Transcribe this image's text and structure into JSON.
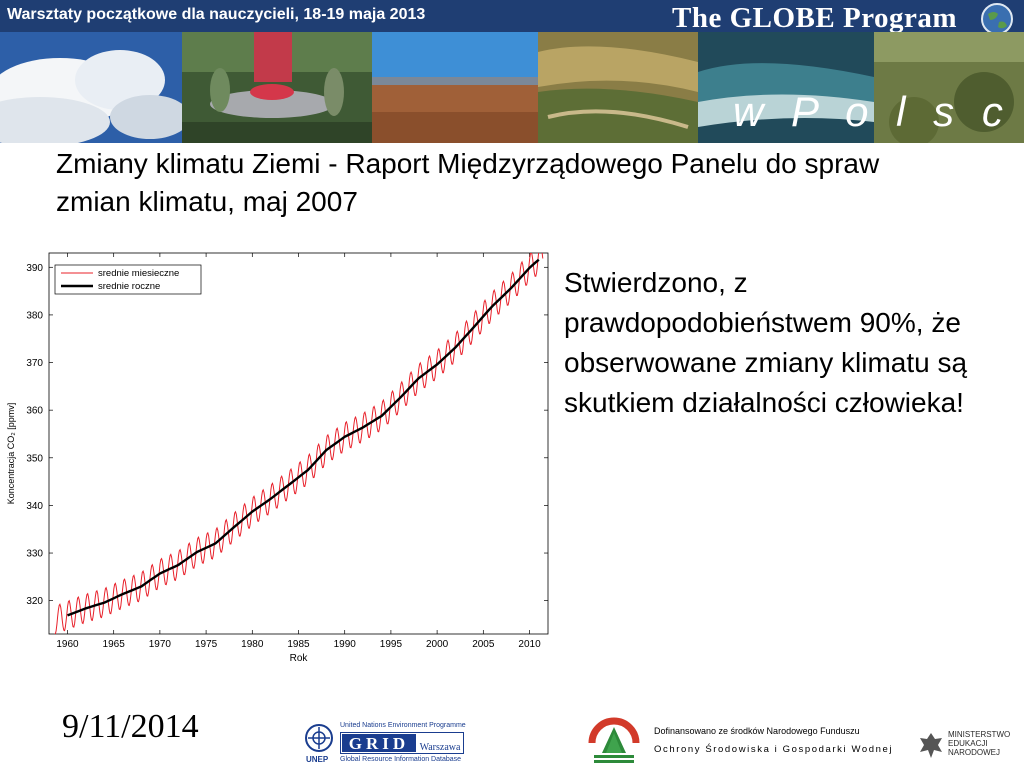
{
  "header": {
    "workshop_title": "Warsztaty początkowe dla nauczycieli, 18-19 maja 2013",
    "program_title": "The GLOBE Program",
    "subtitle": "w P o l s c e"
  },
  "slide": {
    "title": "Zmiany klimatu Ziemi - Raport Międzyrządowego Panelu do spraw zmian klimatu, maj 2007",
    "finding": "Stwierdzono, z prawdopodobieństwem 90%, że obserwowane zmiany klimatu są skutkiem działalności człowieka!"
  },
  "footer": {
    "date": "9/11/2014",
    "unep_header": "United Nations Environment Programme",
    "grid_text": "GRID",
    "grid_city": "Warszawa",
    "grid_subtitle": "Global Resource Information Database",
    "unep_label": "UNEP",
    "funding_line1": "Dofinansowano ze środków Narodowego Funduszu",
    "funding_line2": "Ochrony Środowiska i Gospodarki Wodnej",
    "ministry_line1": "MINISTERSTWO",
    "ministry_line2": "EDUKACJI",
    "ministry_line3": "NARODOWEJ"
  },
  "colors": {
    "banner_bar": "#1f3e73",
    "monthly_line": "#e8202a",
    "annual_line": "#000000"
  },
  "chart_data": {
    "type": "line",
    "title": "",
    "xlabel": "Rok",
    "ylabel": "Koncentracja CO₂ [ppmv]",
    "xlim": [
      1958,
      2012
    ],
    "ylim": [
      313,
      393
    ],
    "x_ticks": [
      1960,
      1965,
      1970,
      1975,
      1980,
      1985,
      1990,
      1995,
      2000,
      2005,
      2010
    ],
    "y_ticks": [
      320,
      330,
      340,
      350,
      360,
      370,
      380,
      390
    ],
    "legend_position": "top-left",
    "series": [
      {
        "name": "srednie miesieczne",
        "color": "#e8202a",
        "seasonal_amplitude_ppmv": 3
      },
      {
        "name": "srednie roczne",
        "color": "#000000",
        "x": [
          1960,
          1962,
          1964,
          1966,
          1968,
          1970,
          1972,
          1974,
          1976,
          1978,
          1980,
          1982,
          1984,
          1986,
          1988,
          1990,
          1992,
          1994,
          1996,
          1998,
          2000,
          2002,
          2004,
          2006,
          2008,
          2010,
          2011
        ],
        "y": [
          316.9,
          318.4,
          319.6,
          321.4,
          323.0,
          325.7,
          327.5,
          330.2,
          332.0,
          335.4,
          338.7,
          341.4,
          344.4,
          347.4,
          351.6,
          354.4,
          356.4,
          358.8,
          362.6,
          366.7,
          369.6,
          373.2,
          377.5,
          381.9,
          385.6,
          389.9,
          391.6
        ]
      }
    ]
  }
}
